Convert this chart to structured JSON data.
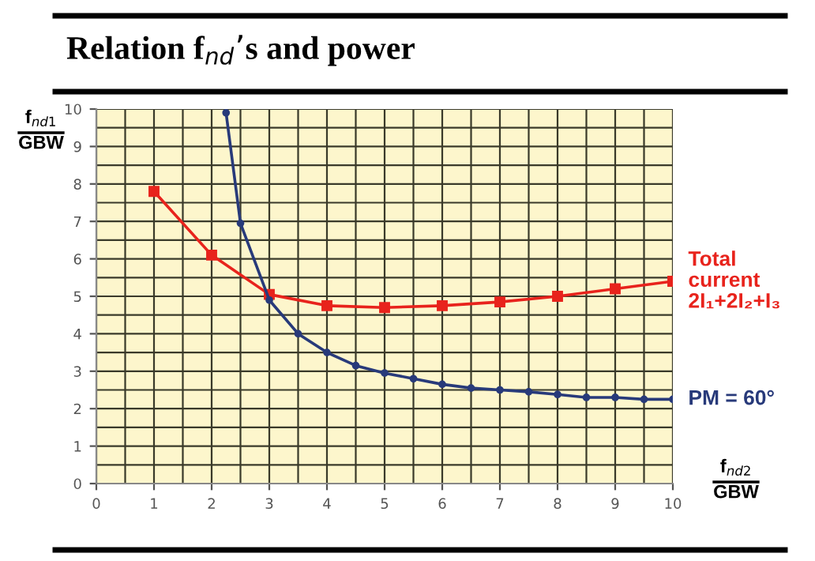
{
  "chart_data": {
    "type": "line",
    "title": "Relation f$_{nd}$’s and power",
    "xlabel": "f$_{nd2}$\nGBW",
    "ylabel": "f$_{nd1}$\nGBW",
    "xlim": [
      0,
      10
    ],
    "ylim": [
      0,
      10
    ],
    "xticks": [
      0,
      1,
      2,
      3,
      4,
      5,
      6,
      7,
      8,
      9,
      10
    ],
    "yticks": [
      0,
      1,
      2,
      3,
      4,
      5,
      6,
      7,
      8,
      9,
      10
    ],
    "grid": true,
    "series": [
      {
        "name": "Total\ncurrent\n2I₁+2I₂+I₃",
        "color": "#e8231c",
        "marker": "square",
        "x": [
          1,
          2,
          3,
          4,
          5,
          6,
          7,
          8,
          9,
          10
        ],
        "values": [
          7.8,
          6.1,
          5.05,
          4.75,
          4.7,
          4.75,
          4.85,
          5.0,
          5.2,
          5.4
        ]
      },
      {
        "name": "PM = 60°",
        "color": "#283a7a",
        "marker": "circle",
        "x": [
          2.25,
          2.5,
          3,
          3.5,
          4,
          4.5,
          5,
          5.5,
          6,
          6.5,
          7,
          7.5,
          8,
          8.5,
          9,
          9.5,
          10
        ],
        "values": [
          9.9,
          6.95,
          4.9,
          4.0,
          3.5,
          3.15,
          2.95,
          2.8,
          2.65,
          2.55,
          2.5,
          2.45,
          2.38,
          2.3,
          2.3,
          2.25,
          2.25
        ]
      }
    ]
  }
}
